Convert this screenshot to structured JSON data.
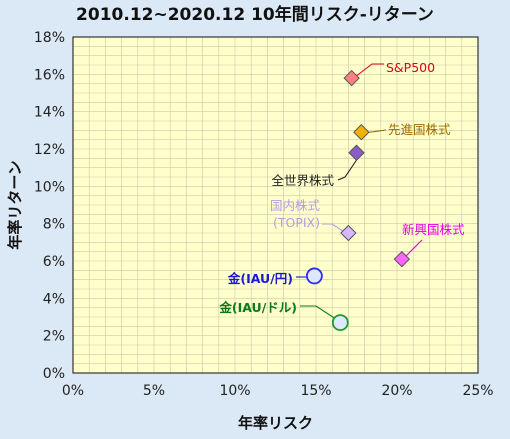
{
  "chart_data": {
    "type": "scatter",
    "title": "2010.12~2020.12 10年間リスク-リターン",
    "xlabel": "年率リスク",
    "ylabel": "年率リターン",
    "xlim": [
      0,
      25
    ],
    "ylim": [
      0,
      18
    ],
    "xticks": [
      0,
      5,
      10,
      15,
      20,
      25
    ],
    "yticks": [
      0,
      2,
      4,
      6,
      8,
      10,
      12,
      14,
      16,
      18
    ],
    "tick_format": "{v}%",
    "grid": true,
    "plot_bg": "#ffffcc",
    "grid_color": "#c9c9a8",
    "points": [
      {
        "label": "S&P500",
        "x": 17.2,
        "y": 15.8,
        "shape": "diamond",
        "color": "#ff8080",
        "label_color": "#e0001b",
        "label_bold": false
      },
      {
        "label": "先進国株式",
        "x": 17.8,
        "y": 12.9,
        "shape": "diamond",
        "color": "#f0b400",
        "label_color": "#9e6a00",
        "label_bold": false
      },
      {
        "label": "全世界株式",
        "x": 17.5,
        "y": 11.8,
        "shape": "diamond",
        "color": "#8a5cc4",
        "label_color": "#222222",
        "label_bold": false
      },
      {
        "label": "国内株式\n(TOPIX)",
        "x": 17.0,
        "y": 7.5,
        "shape": "diamond",
        "color": "#d7b8ff",
        "label_color": "#b79ae6",
        "label_bold": false
      },
      {
        "label": "新興国株式",
        "x": 20.3,
        "y": 6.1,
        "shape": "diamond",
        "color": "#ff66ff",
        "label_color": "#e000e0",
        "label_bold": false
      },
      {
        "label": "金(IAU/円)",
        "x": 14.9,
        "y": 5.2,
        "shape": "circle",
        "color": "#2a2aff",
        "label_color": "#1a1acc",
        "label_bold": true
      },
      {
        "label": "金(IAU/ドル)",
        "x": 16.5,
        "y": 2.7,
        "shape": "circle",
        "color": "#1e9a2e",
        "label_color": "#0b7a1b",
        "label_bold": true
      }
    ]
  }
}
